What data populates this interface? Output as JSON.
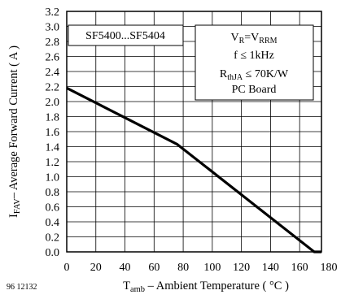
{
  "chart_data": {
    "type": "line",
    "series": [
      {
        "x": [
          0,
          76,
          170,
          175
        ],
        "y": [
          2.18,
          1.43,
          0.0,
          0.0
        ]
      }
    ],
    "xlim": [
      0,
      175
    ],
    "ylim": [
      0.0,
      3.2
    ],
    "xticks": [
      0,
      20,
      40,
      60,
      80,
      100,
      120,
      140,
      160,
      180
    ],
    "yticks": [
      "0.0",
      "0.2",
      "0.4",
      "0.6",
      "0.8",
      "1.0",
      "1.2",
      "1.4",
      "1.6",
      "1.8",
      "2.0",
      "2.2",
      "2.4",
      "2.6",
      "2.8",
      "3.0",
      "3.2"
    ],
    "grid": true,
    "xlabel": {
      "symbol": "T",
      "sub": "amb",
      "text": " – Ambient Temperature ( °C )"
    },
    "ylabel": {
      "symbol": "I",
      "sub": "FAV",
      "text": "– Average Forward Current ( A )"
    },
    "annotation_left": "SF5400...SF5404",
    "annotation_right": {
      "line1": {
        "a": "V",
        "a_sub": "R",
        "b": "=V",
        "b_sub": "RRM"
      },
      "line2": "f ≤ 1kHz",
      "line3": {
        "a": "R",
        "a_sub": "thJA",
        "b": " ≤ 70K/W"
      },
      "line4": "PC Board"
    },
    "figure_id": "96 12132"
  }
}
